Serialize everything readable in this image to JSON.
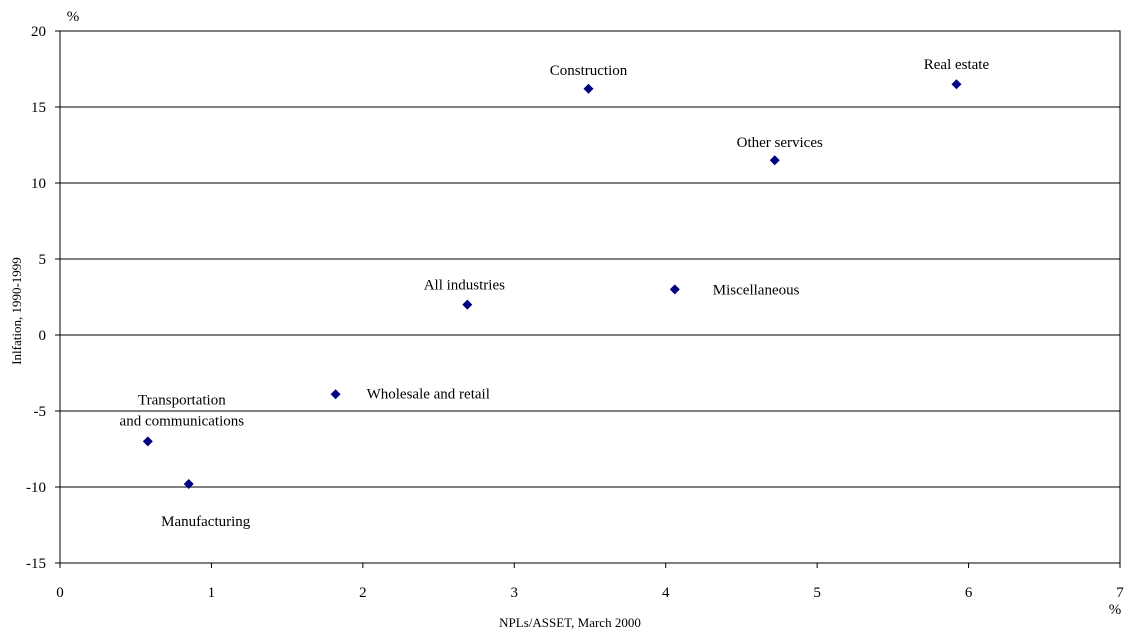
{
  "chart_data": {
    "type": "scatter",
    "title": "",
    "xlabel": "NPLs/ASSET, March 2000",
    "ylabel": "Inlfation, 1990-1999",
    "x_unit": "%",
    "y_unit": "%",
    "xlim": [
      0,
      7
    ],
    "ylim": [
      -15,
      20
    ],
    "x_ticks": [
      0,
      1,
      2,
      3,
      4,
      5,
      6,
      7
    ],
    "y_ticks": [
      -15,
      -10,
      -5,
      0,
      5,
      10,
      15,
      20
    ],
    "grid": "horizontal",
    "legend": "none",
    "marker_color": "#000080",
    "points": [
      {
        "label": "Construction",
        "x": 3.49,
        "y": 16.2
      },
      {
        "label": "Real estate",
        "x": 5.92,
        "y": 16.5
      },
      {
        "label": "Other services",
        "x": 4.72,
        "y": 11.5
      },
      {
        "label": "All industries",
        "x": 2.69,
        "y": 2.0
      },
      {
        "label": "Miscellaneous",
        "x": 4.06,
        "y": 3.0
      },
      {
        "label": "Wholesale and retail",
        "x": 1.82,
        "y": -3.9
      },
      {
        "label": "Transportation\nand communications",
        "x": 0.58,
        "y": -7.0
      },
      {
        "label": "Manufacturing",
        "x": 0.85,
        "y": -9.8
      }
    ]
  }
}
